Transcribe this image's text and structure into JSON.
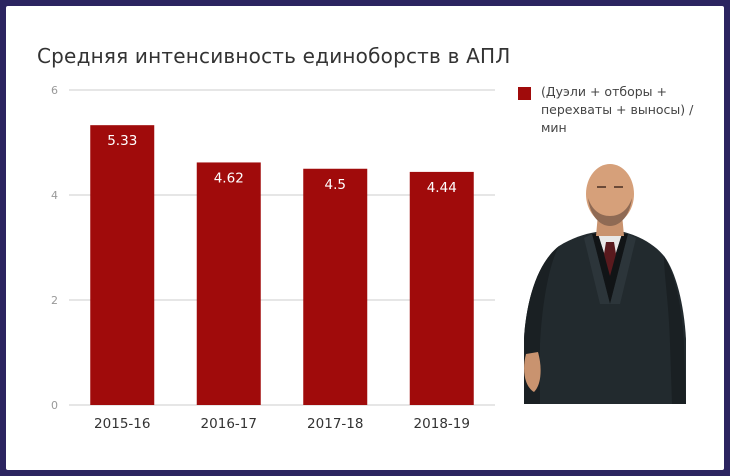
{
  "colors": {
    "bar": "#a00b0b",
    "frame": "#2b2460",
    "grid": "#cccccc",
    "axis_text": "#999999",
    "category_text": "#333333",
    "data_label": "#ffffff"
  },
  "chart_data": {
    "type": "bar",
    "title": "Средняя интенсивность единоборств в АПЛ",
    "categories": [
      "2015-16",
      "2016-17",
      "2017-18",
      "2018-19"
    ],
    "series": [
      {
        "name": "(Дуэли + отборы + перехваты + выносы) /мин",
        "values": [
          5.33,
          4.62,
          4.5,
          4.44
        ]
      }
    ],
    "data_labels": [
      "5.33",
      "4.62",
      "4.5",
      "4.44"
    ],
    "y_ticks": [
      "0",
      "2",
      "4",
      "6"
    ],
    "ylim": [
      0,
      6
    ],
    "grid": true,
    "legend_position": "right"
  },
  "image": {
    "icon": "man-in-dark-suit-photo"
  }
}
